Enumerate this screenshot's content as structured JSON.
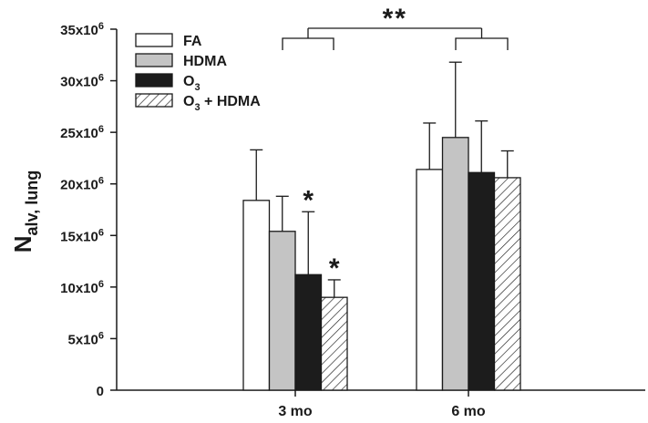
{
  "chart_data": {
    "type": "bar",
    "title": "",
    "xlabel": "",
    "ylabel": {
      "main": "N",
      "subscript": "alv, lung"
    },
    "ylim": [
      0,
      35000000
    ],
    "yticks": [
      0,
      5000000,
      10000000,
      15000000,
      20000000,
      25000000,
      30000000,
      35000000
    ],
    "ytick_labels": [
      {
        "base": "0",
        "exp": ""
      },
      {
        "base": "5x10",
        "exp": "6"
      },
      {
        "base": "10x10",
        "exp": "6"
      },
      {
        "base": "15x10",
        "exp": "6"
      },
      {
        "base": "20x10",
        "exp": "6"
      },
      {
        "base": "25x10",
        "exp": "6"
      },
      {
        "base": "30x10",
        "exp": "6"
      },
      {
        "base": "35x10",
        "exp": "6"
      }
    ],
    "categories": [
      "3 mo",
      "6 mo"
    ],
    "series": [
      {
        "name": "FA",
        "legend": {
          "main": "FA",
          "sub": "",
          "rest": ""
        },
        "fill": "#ffffff",
        "pattern": "none",
        "values": [
          18400000,
          21400000
        ],
        "errors": [
          4900000,
          4500000
        ]
      },
      {
        "name": "HDMA",
        "legend": {
          "main": "HDMA",
          "sub": "",
          "rest": ""
        },
        "fill": "#c4c4c4",
        "pattern": "none",
        "values": [
          15400000,
          24500000
        ],
        "errors": [
          3400000,
          7300000
        ]
      },
      {
        "name": "O3",
        "legend": {
          "main": "O",
          "sub": "3",
          "rest": ""
        },
        "fill": "#1c1c1c",
        "pattern": "none",
        "values": [
          11200000,
          21100000
        ],
        "errors": [
          6100000,
          5000000
        ]
      },
      {
        "name": "O3 + HDMA",
        "legend": {
          "main": "O",
          "sub": "3",
          "rest": " + HDMA"
        },
        "fill": "#ffffff",
        "pattern": "hatch",
        "values": [
          9000000,
          20600000
        ],
        "errors": [
          1700000,
          2600000
        ]
      }
    ],
    "significance": [
      {
        "category": 0,
        "series": 2,
        "label": "*"
      },
      {
        "category": 0,
        "series": 3,
        "label": "*"
      },
      {
        "between": [
          "3 mo",
          "6 mo"
        ],
        "label": "**"
      }
    ],
    "legend_position": "top-left",
    "grid": false
  }
}
